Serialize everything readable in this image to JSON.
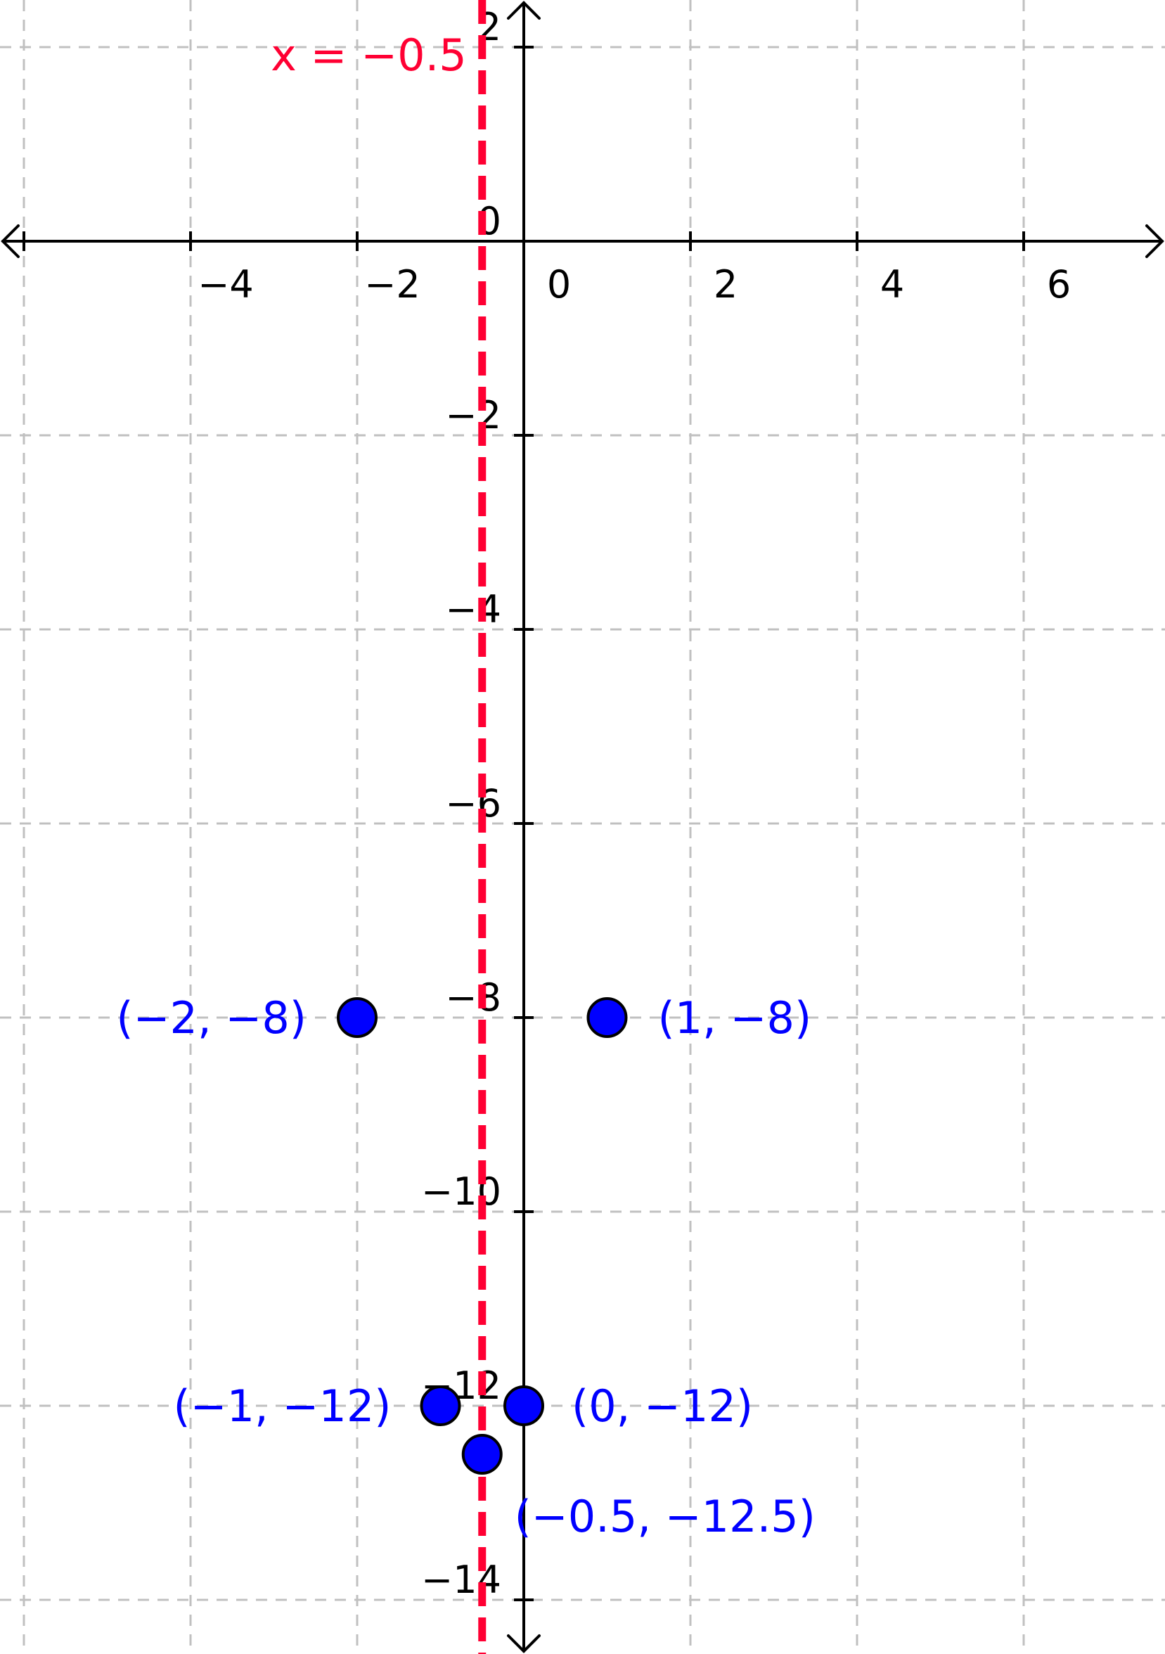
{
  "chart_data": {
    "type": "scatter",
    "title": "",
    "xlabel": "",
    "ylabel": "",
    "xlim": [
      -6,
      7
    ],
    "ylim": [
      -14.7,
      2.4
    ],
    "grid": true,
    "x_ticks": [
      {
        "value": -4,
        "label": "−4"
      },
      {
        "value": -2,
        "label": "−2"
      },
      {
        "value": 0,
        "label": "0"
      },
      {
        "value": 2,
        "label": "2"
      },
      {
        "value": 4,
        "label": "4"
      },
      {
        "value": 6,
        "label": "6"
      }
    ],
    "y_ticks": [
      {
        "value": 2,
        "label": "2"
      },
      {
        "value": 0,
        "label": "0"
      },
      {
        "value": -2,
        "label": "−2"
      },
      {
        "value": -4,
        "label": "−4"
      },
      {
        "value": -6,
        "label": "−6"
      },
      {
        "value": -8,
        "label": "−8"
      },
      {
        "value": -10,
        "label": "−10"
      },
      {
        "value": -12,
        "label": "−12"
      },
      {
        "value": -14,
        "label": "−14"
      }
    ],
    "points": [
      {
        "x": -2,
        "y": -8,
        "label": "(−2, −8)"
      },
      {
        "x": 1,
        "y": -8,
        "label": "(1, −8)"
      },
      {
        "x": -1,
        "y": -12,
        "label": "(−1, −12)"
      },
      {
        "x": 0,
        "y": -12,
        "label": "(0, −12)"
      },
      {
        "x": -0.5,
        "y": -12.5,
        "label": "(−0.5, −12.5)"
      }
    ],
    "lines": [
      {
        "type": "vertical",
        "x": -0.5,
        "label": "x = −0.5",
        "style": "dashed"
      }
    ],
    "colors": {
      "point_fill": "#0000ff",
      "point_label": "#0000ff",
      "axis_line": "#ff0033",
      "grid": "#c0c0c0",
      "axes": "#000000"
    }
  }
}
